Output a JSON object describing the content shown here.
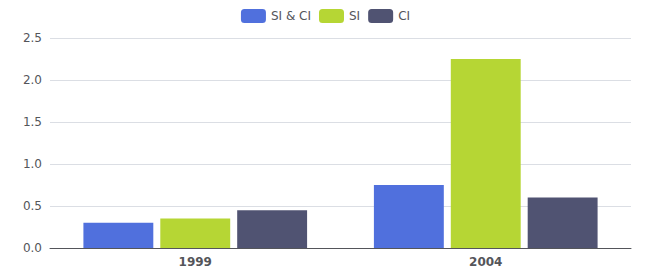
{
  "chart_data": {
    "type": "bar",
    "categories": [
      "1999",
      "2004"
    ],
    "series": [
      {
        "name": "SI & CI",
        "values": [
          0.3,
          0.75
        ]
      },
      {
        "name": "SI",
        "values": [
          0.35,
          2.25
        ]
      },
      {
        "name": "CI",
        "values": [
          0.45,
          0.6
        ]
      }
    ],
    "ylim": [
      0,
      2.5
    ],
    "yticks": [
      {
        "value": 0,
        "label": "0.0"
      },
      0.5,
      {
        "value": 1,
        "label": "1.0"
      },
      1.5,
      {
        "value": 2,
        "label": "2.0"
      },
      2.5
    ],
    "grid": true,
    "legend": "upper center"
  }
}
